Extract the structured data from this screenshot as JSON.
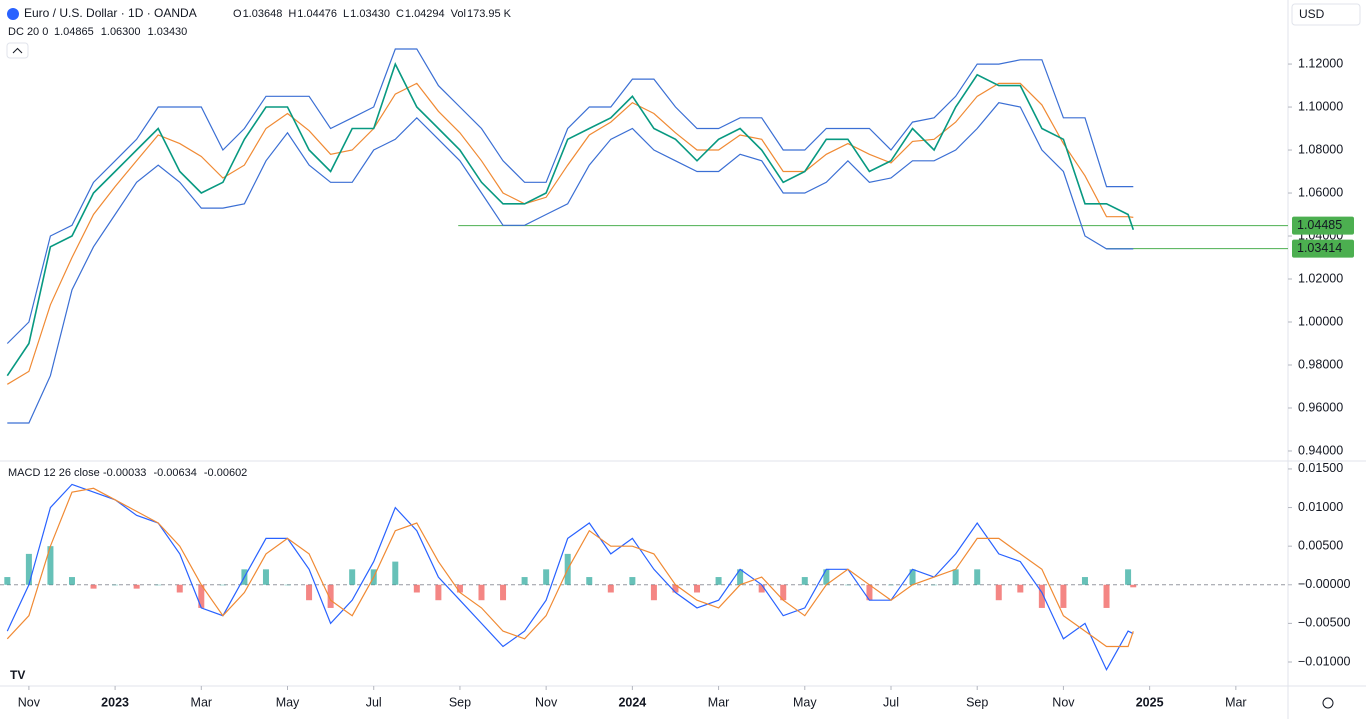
{
  "header": {
    "symbol": "Euro / U.S. Dollar · 1D · OANDA",
    "ohlc": [
      [
        "O",
        "1.03648"
      ],
      [
        "H",
        "1.04476"
      ],
      [
        "L",
        "1.03430"
      ],
      [
        "C",
        "1.04294"
      ],
      [
        "Vol",
        "173.95 K"
      ]
    ],
    "currency": "USD",
    "dc": {
      "label": "DC 20 0",
      "values": [
        "1.04865",
        "1.06300",
        "1.03430"
      ]
    },
    "macd": {
      "label": "MACD 12 26 close",
      "values": [
        "-0.00033",
        "-0.00634",
        "-0.00602"
      ]
    }
  },
  "chart_data": [
    {
      "type": "line",
      "xlim": [
        -0.67,
        29.21
      ],
      "ylim": [
        0.9358,
        1.1498
      ],
      "xticks": [
        {
          "value": 0,
          "label": "Nov"
        },
        {
          "value": 2,
          "label": "2023"
        },
        {
          "value": 4,
          "label": "Mar"
        },
        {
          "value": 6,
          "label": "May"
        },
        {
          "value": 8,
          "label": "Jul"
        },
        {
          "value": 10,
          "label": "Sep"
        },
        {
          "value": 12,
          "label": "Nov"
        },
        {
          "value": 14,
          "label": "2024"
        },
        {
          "value": 16,
          "label": "Mar"
        },
        {
          "value": 18,
          "label": "May"
        },
        {
          "value": 20,
          "label": "Jul"
        },
        {
          "value": 22,
          "label": "Sep"
        },
        {
          "value": 24,
          "label": "Nov"
        },
        {
          "value": 26,
          "label": "2025"
        },
        {
          "value": 28,
          "label": "Mar"
        }
      ],
      "yticks": [
        {
          "value": 0.94,
          "label": "0.94000"
        },
        {
          "value": 0.96,
          "label": "0.96000"
        },
        {
          "value": 0.98,
          "label": "0.98000"
        },
        {
          "value": 1.0,
          "label": "1.00000"
        },
        {
          "value": 1.02,
          "label": "1.02000"
        },
        {
          "value": 1.04,
          "label": "1.04000"
        },
        {
          "value": 1.06,
          "label": "1.06000"
        },
        {
          "value": 1.08,
          "label": "1.08000"
        },
        {
          "value": 1.1,
          "label": "1.10000"
        },
        {
          "value": 1.12,
          "label": "1.12000"
        }
      ],
      "x": [
        -0.5,
        0,
        0.5,
        1,
        1.5,
        2,
        2.5,
        3,
        3.5,
        4,
        4.5,
        5,
        5.5,
        6,
        6.5,
        7,
        7.5,
        8,
        8.5,
        9,
        9.5,
        10,
        10.5,
        11,
        11.5,
        12,
        12.5,
        13,
        13.5,
        14,
        14.5,
        15,
        15.5,
        16,
        16.5,
        17,
        17.5,
        18,
        18.5,
        19,
        19.5,
        20,
        20.5,
        21,
        21.5,
        22,
        22.5,
        23,
        23.5,
        24,
        24.5,
        25,
        25.5,
        25.62
      ],
      "series": [
        {
          "color": "#3b6fd4",
          "values": [
            0.99,
            1.0,
            1.04,
            1.045,
            1.065,
            1.075,
            1.085,
            1.1,
            1.1,
            1.1,
            1.08,
            1.09,
            1.105,
            1.105,
            1.105,
            1.09,
            1.095,
            1.1,
            1.127,
            1.127,
            1.11,
            1.1,
            1.09,
            1.075,
            1.065,
            1.065,
            1.09,
            1.1,
            1.1,
            1.113,
            1.113,
            1.1,
            1.09,
            1.09,
            1.095,
            1.095,
            1.08,
            1.08,
            1.09,
            1.09,
            1.09,
            1.08,
            1.093,
            1.095,
            1.105,
            1.12,
            1.12,
            1.122,
            1.122,
            1.095,
            1.095,
            1.063,
            1.063,
            1.063
          ]
        },
        {
          "color": "#3b6fd4",
          "values": [
            0.953,
            0.953,
            0.975,
            1.015,
            1.035,
            1.05,
            1.065,
            1.073,
            1.065,
            1.053,
            1.053,
            1.055,
            1.075,
            1.088,
            1.073,
            1.065,
            1.065,
            1.08,
            1.085,
            1.095,
            1.085,
            1.075,
            1.06,
            1.045,
            1.045,
            1.05,
            1.055,
            1.073,
            1.085,
            1.09,
            1.08,
            1.075,
            1.07,
            1.07,
            1.078,
            1.075,
            1.06,
            1.06,
            1.065,
            1.075,
            1.065,
            1.067,
            1.075,
            1.075,
            1.08,
            1.09,
            1.102,
            1.1,
            1.08,
            1.07,
            1.04,
            1.034,
            1.034,
            1.034
          ]
        },
        {
          "color": "#f08a34",
          "values": [
            0.971,
            0.977,
            1.008,
            1.03,
            1.05,
            1.063,
            1.075,
            1.087,
            1.083,
            1.077,
            1.067,
            1.073,
            1.09,
            1.097,
            1.089,
            1.078,
            1.08,
            1.09,
            1.106,
            1.111,
            1.098,
            1.088,
            1.075,
            1.06,
            1.055,
            1.058,
            1.073,
            1.087,
            1.093,
            1.102,
            1.097,
            1.088,
            1.08,
            1.08,
            1.087,
            1.085,
            1.07,
            1.07,
            1.078,
            1.083,
            1.078,
            1.074,
            1.084,
            1.085,
            1.093,
            1.105,
            1.111,
            1.111,
            1.101,
            1.083,
            1.068,
            1.049,
            1.049,
            1.04865
          ]
        },
        {
          "color": "#089981",
          "values": [
            0.975,
            0.99,
            1.035,
            1.04,
            1.06,
            1.07,
            1.08,
            1.09,
            1.07,
            1.06,
            1.065,
            1.085,
            1.1,
            1.1,
            1.08,
            1.07,
            1.09,
            1.09,
            1.12,
            1.1,
            1.09,
            1.08,
            1.065,
            1.055,
            1.055,
            1.06,
            1.085,
            1.09,
            1.095,
            1.105,
            1.09,
            1.085,
            1.075,
            1.085,
            1.09,
            1.08,
            1.065,
            1.07,
            1.085,
            1.085,
            1.07,
            1.075,
            1.09,
            1.08,
            1.1,
            1.115,
            1.11,
            1.11,
            1.09,
            1.085,
            1.055,
            1.055,
            1.05,
            1.04294
          ]
        }
      ],
      "price_lines": [
        {
          "value": 1.04485,
          "label": "1.04485",
          "color": "#4caf50",
          "x_start": 9.96
        },
        {
          "value": 1.03414,
          "label": "1.03414",
          "color": "#4caf50",
          "x_start": 25.0
        }
      ]
    },
    {
      "type": "macd",
      "xlim": [
        -0.67,
        29.21
      ],
      "ylim": [
        -0.01298,
        0.0159
      ],
      "zero_line": true,
      "yticks": [
        {
          "value": -0.01,
          "label": "−0.01000"
        },
        {
          "value": -0.005,
          "label": "−0.00500"
        },
        {
          "value": 0,
          "label": "−0.00000"
        },
        {
          "value": 0.005,
          "label": "0.00500"
        },
        {
          "value": 0.01,
          "label": "0.01000"
        },
        {
          "value": 0.015,
          "label": "0.01500"
        }
      ],
      "x": [
        -0.5,
        0,
        0.5,
        1,
        1.5,
        2,
        2.5,
        3,
        3.5,
        4,
        4.5,
        5,
        5.5,
        6,
        6.5,
        7,
        7.5,
        8,
        8.5,
        9,
        9.5,
        10,
        10.5,
        11,
        11.5,
        12,
        12.5,
        13,
        13.5,
        14,
        14.5,
        15,
        15.5,
        16,
        16.5,
        17,
        17.5,
        18,
        18.5,
        19,
        19.5,
        20,
        20.5,
        21,
        21.5,
        22,
        22.5,
        23,
        23.5,
        24,
        24.5,
        25,
        25.5,
        25.62
      ],
      "histogram": {
        "up_color": "#26a69a",
        "down_color": "#ef5350",
        "values": [
          0.001,
          0.004,
          0.005,
          0.001,
          -0.0005,
          0,
          -0.0005,
          0,
          -0.001,
          -0.003,
          0,
          0.002,
          0.002,
          0,
          -0.002,
          -0.003,
          0.002,
          0.002,
          0.003,
          -0.001,
          -0.002,
          -0.001,
          -0.002,
          -0.002,
          0.001,
          0.002,
          0.004,
          0.001,
          -0.001,
          0.001,
          -0.002,
          -0.001,
          -0.001,
          0.001,
          0.002,
          -0.001,
          -0.002,
          0.001,
          0.002,
          0,
          -0.002,
          0,
          0.002,
          0,
          0.002,
          0.002,
          -0.002,
          -0.001,
          -0.003,
          -0.003,
          0.001,
          -0.003,
          0.002,
          -0.00033
        ]
      },
      "series": [
        {
          "color": "#2962ff",
          "values": [
            -0.006,
            0.0,
            0.01,
            0.013,
            0.012,
            0.011,
            0.009,
            0.008,
            0.004,
            -0.003,
            -0.004,
            0.001,
            0.006,
            0.006,
            0.002,
            -0.005,
            -0.002,
            0.003,
            0.01,
            0.007,
            0.001,
            -0.002,
            -0.005,
            -0.008,
            -0.006,
            -0.002,
            0.006,
            0.008,
            0.004,
            0.006,
            0.002,
            -0.001,
            -0.003,
            -0.002,
            0.002,
            0.0,
            -0.004,
            -0.003,
            0.002,
            0.002,
            -0.002,
            -0.002,
            0.002,
            0.001,
            0.004,
            0.008,
            0.004,
            0.003,
            -0.001,
            -0.007,
            -0.005,
            -0.011,
            -0.006,
            -0.00634
          ]
        },
        {
          "color": "#f08a34",
          "values": [
            -0.007,
            -0.004,
            0.005,
            0.012,
            0.0125,
            0.011,
            0.0095,
            0.008,
            0.005,
            0.0,
            -0.004,
            -0.001,
            0.004,
            0.006,
            0.004,
            -0.002,
            -0.004,
            0.001,
            0.007,
            0.008,
            0.003,
            -0.001,
            -0.003,
            -0.006,
            -0.007,
            -0.004,
            0.002,
            0.007,
            0.005,
            0.005,
            0.004,
            0.0,
            -0.002,
            -0.003,
            0.0,
            0.001,
            -0.002,
            -0.004,
            0.0,
            0.002,
            0.0,
            -0.002,
            0.0,
            0.001,
            0.002,
            0.006,
            0.006,
            0.004,
            0.002,
            -0.004,
            -0.006,
            -0.008,
            -0.008,
            -0.00602
          ]
        }
      ]
    }
  ]
}
